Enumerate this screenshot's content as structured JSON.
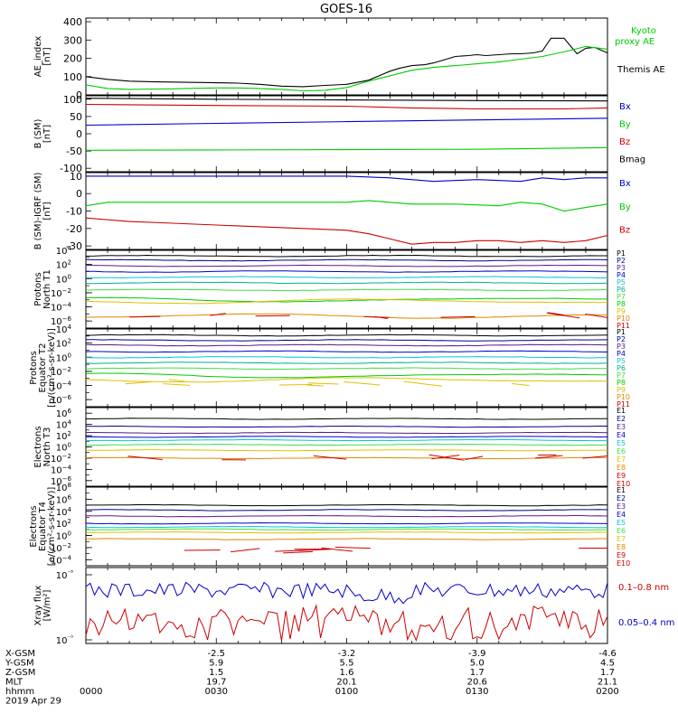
{
  "title": "GOES-16",
  "colors": {
    "black": "#000000",
    "blue": "#0000cc",
    "green": "#00cc00",
    "red": "#cc0000",
    "navy": "#00008b",
    "purple": "#5a1a8a",
    "cyan": "#00c8d8",
    "teal": "#00b090",
    "yellow": "#e0c000",
    "orange": "#e08800",
    "lightgreen": "#40dd40"
  },
  "chart_data": [
    {
      "type": "line",
      "ylabel_lines": [
        "AE_index",
        "[nT]"
      ],
      "yticks": [
        "400",
        "300",
        "200",
        "100",
        "0"
      ],
      "ylim": [
        0,
        420
      ],
      "legend": [
        {
          "label": "Kyoto",
          "color": "green"
        },
        {
          "label": "proxy AE",
          "color": "green"
        },
        {
          "label": "Themis AE",
          "color": "black"
        }
      ],
      "series": [
        {
          "name": "Themis AE",
          "color": "black",
          "x": [
            0,
            5,
            10,
            15,
            20,
            25,
            30,
            35,
            40,
            45,
            50,
            55,
            60,
            65,
            68,
            70,
            72,
            75,
            78,
            80,
            85,
            88,
            90,
            92,
            95,
            98,
            100,
            103,
            105,
            107,
            110,
            113,
            115,
            117,
            120
          ],
          "values": [
            100,
            85,
            75,
            72,
            70,
            68,
            66,
            64,
            58,
            48,
            45,
            52,
            58,
            80,
            110,
            130,
            145,
            160,
            165,
            175,
            210,
            215,
            220,
            215,
            220,
            225,
            225,
            230,
            240,
            310,
            310,
            225,
            255,
            260,
            230
          ]
        },
        {
          "name": "proxy AE",
          "color": "green",
          "x": [
            0,
            5,
            10,
            15,
            20,
            25,
            30,
            35,
            40,
            45,
            50,
            55,
            60,
            65,
            70,
            75,
            80,
            85,
            90,
            95,
            100,
            105,
            110,
            115,
            120
          ],
          "values": [
            55,
            35,
            30,
            32,
            33,
            36,
            38,
            38,
            35,
            30,
            22,
            25,
            40,
            75,
            105,
            135,
            150,
            160,
            170,
            180,
            195,
            210,
            235,
            265,
            250
          ]
        }
      ]
    },
    {
      "type": "line",
      "ylabel_lines": [
        "B (SM)",
        "[nT]"
      ],
      "yticks": [
        "100",
        "50",
        "0",
        "-50",
        "-100"
      ],
      "ylim": [
        -110,
        110
      ],
      "legend": [
        {
          "label": "Bx",
          "color": "blue"
        },
        {
          "label": "By",
          "color": "green"
        },
        {
          "label": "Bz",
          "color": "red"
        },
        {
          "label": "Bmag",
          "color": "black"
        }
      ],
      "series": [
        {
          "name": "Bmag",
          "color": "black",
          "x": [
            0,
            30,
            60,
            90,
            120
          ],
          "values": [
            103,
            100,
            98,
            96,
            95
          ]
        },
        {
          "name": "Bz",
          "color": "red",
          "x": [
            0,
            30,
            60,
            75,
            90,
            110,
            120
          ],
          "values": [
            85,
            82,
            80,
            75,
            72,
            72,
            75
          ]
        },
        {
          "name": "Bx",
          "color": "blue",
          "x": [
            0,
            30,
            60,
            90,
            120
          ],
          "values": [
            25,
            30,
            35,
            40,
            45
          ]
        },
        {
          "name": "By",
          "color": "green",
          "x": [
            0,
            30,
            60,
            90,
            120
          ],
          "values": [
            -48,
            -47,
            -46,
            -45,
            -40
          ]
        }
      ]
    },
    {
      "type": "line",
      "ylabel_lines": [
        "B (SM)-IGRF (SM)",
        "[nT]"
      ],
      "yticks": [
        "10",
        "0",
        "-10",
        "-20",
        "-30"
      ],
      "ylim": [
        -32,
        12
      ],
      "legend": [
        {
          "label": "Bx",
          "color": "blue"
        },
        {
          "label": "By",
          "color": "green"
        },
        {
          "label": "Bz",
          "color": "red"
        }
      ],
      "series": [
        {
          "name": "Bx",
          "color": "blue",
          "x": [
            0,
            20,
            40,
            60,
            70,
            80,
            90,
            100,
            105,
            110,
            115,
            120
          ],
          "values": [
            10,
            10,
            10,
            10,
            9,
            7,
            8,
            7,
            9,
            8,
            9,
            9
          ]
        },
        {
          "name": "By",
          "color": "green",
          "x": [
            0,
            5,
            20,
            40,
            60,
            65,
            75,
            85,
            95,
            100,
            105,
            110,
            115,
            120
          ],
          "values": [
            -7,
            -5,
            -5,
            -5,
            -5,
            -4,
            -6,
            -6,
            -7,
            -5,
            -6,
            -10,
            -8,
            -6
          ]
        },
        {
          "name": "Bz",
          "color": "red",
          "x": [
            0,
            10,
            20,
            30,
            40,
            50,
            60,
            65,
            70,
            75,
            80,
            85,
            90,
            95,
            100,
            105,
            110,
            115,
            120
          ],
          "values": [
            -14,
            -16,
            -17,
            -18,
            -19,
            -20,
            -21,
            -23,
            -26,
            -29,
            -28,
            -28,
            -27,
            -27,
            -28,
            -27,
            -28,
            -27,
            -24
          ]
        }
      ]
    },
    {
      "type": "line",
      "log": true,
      "ylabel_lines": [
        "Protons",
        "North T1"
      ],
      "ylim_exp": [
        -7,
        4
      ],
      "yticks_exp": [
        4,
        2,
        0,
        -2,
        -4,
        -6
      ],
      "channels": [
        "P1",
        "P2",
        "P3",
        "P4",
        "P5",
        "P6",
        "P7",
        "P8",
        "P9",
        "P10",
        "P11"
      ],
      "channel_colors": [
        "black",
        "navy",
        "purple",
        "blue",
        "cyan",
        "teal",
        "lightgreen",
        "green",
        "yellow",
        "orange",
        "red"
      ],
      "levels_exp": [
        3.2,
        2.6,
        1.8,
        1.0,
        0.2,
        -0.6,
        -1.6,
        -3.0,
        -3.2,
        -5.3,
        null
      ]
    },
    {
      "type": "line",
      "log": true,
      "ylabel_lines": [
        "Protons",
        "Equator T2",
        "[p/(cm²-s-sr-keV)]"
      ],
      "ylim_exp": [
        -7,
        4
      ],
      "yticks_exp": [
        4,
        2,
        0,
        -2,
        -4,
        -6
      ],
      "channels": [
        "P1",
        "P2",
        "P3",
        "P4",
        "P5",
        "P6",
        "P7",
        "P8",
        "P9",
        "P10",
        "P11"
      ],
      "channel_colors": [
        "black",
        "navy",
        "purple",
        "blue",
        "cyan",
        "teal",
        "lightgreen",
        "green",
        "yellow",
        "orange",
        "red"
      ],
      "levels_exp": [
        3.1,
        2.4,
        1.7,
        0.8,
        0.0,
        -0.8,
        -1.6,
        -2.6,
        -3.2,
        null,
        null
      ]
    },
    {
      "type": "line",
      "log": true,
      "ylabel_lines": [
        "Electrons",
        "North T3"
      ],
      "ylim_exp": [
        -7,
        7
      ],
      "yticks_exp": [
        6,
        4,
        2,
        0,
        -2,
        -4,
        -6
      ],
      "channels": [
        "E1",
        "E2",
        "E3",
        "E4",
        "E5",
        "E6",
        "E7",
        "E8",
        "E9",
        "E10"
      ],
      "channel_colors": [
        "black",
        "navy",
        "purple",
        "blue",
        "cyan",
        "lightgreen",
        "yellow",
        "orange",
        "red",
        "red"
      ],
      "levels_exp": [
        5.0,
        3.6,
        2.5,
        1.8,
        1.2,
        0.4,
        -0.6,
        -2.0,
        null,
        null
      ]
    },
    {
      "type": "line",
      "log": true,
      "ylabel_lines": [
        "Electrons",
        "Equator T4",
        "[e/(cm²-s-sr-keV)]"
      ],
      "ylim_exp": [
        -5,
        8
      ],
      "yticks_exp": [
        8,
        6,
        4,
        2,
        0,
        -2,
        -4
      ],
      "channels": [
        "E1",
        "E2",
        "E3",
        "E4",
        "E5",
        "E6",
        "E7",
        "E8",
        "E9",
        "E10"
      ],
      "channel_colors": [
        "black",
        "navy",
        "purple",
        "blue",
        "cyan",
        "lightgreen",
        "yellow",
        "orange",
        "red",
        "red"
      ],
      "levels_exp": [
        5.0,
        4.2,
        3.2,
        2.0,
        1.4,
        1.0,
        0.5,
        -0.6,
        null,
        null
      ]
    },
    {
      "type": "line",
      "log": true,
      "ylabel_lines": [
        "Xray flux",
        "[W/m²]"
      ],
      "ytick_labels": [
        "10⁻⁸",
        "10⁻⁹"
      ],
      "legend": [
        {
          "label": "0.1–0.8 nm",
          "color": "red"
        },
        {
          "label": "0.05–0.4 nm",
          "color": "blue"
        }
      ]
    }
  ],
  "x_axis": {
    "range_minutes": [
      0,
      120
    ],
    "major_ticks_min": [
      0,
      30,
      60,
      90,
      120
    ],
    "rows": [
      {
        "label": "X-GSM",
        "values": [
          "",
          "-2.5",
          "-3.2",
          "-3.9",
          "-4.6"
        ]
      },
      {
        "label": "Y-GSM",
        "values": [
          "",
          "5.9",
          "5.5",
          "5.0",
          "4.5"
        ]
      },
      {
        "label": "Z-GSM",
        "values": [
          "",
          "1.5",
          "1.6",
          "1.7",
          "1.7"
        ]
      },
      {
        "label": "MLT",
        "values": [
          "",
          "19.7",
          "20.1",
          "20.6",
          "21.1"
        ]
      },
      {
        "label": "hhmm",
        "values": [
          "0000",
          "0030",
          "0100",
          "0130",
          "0200"
        ]
      }
    ],
    "date": "2019 Apr 29"
  }
}
